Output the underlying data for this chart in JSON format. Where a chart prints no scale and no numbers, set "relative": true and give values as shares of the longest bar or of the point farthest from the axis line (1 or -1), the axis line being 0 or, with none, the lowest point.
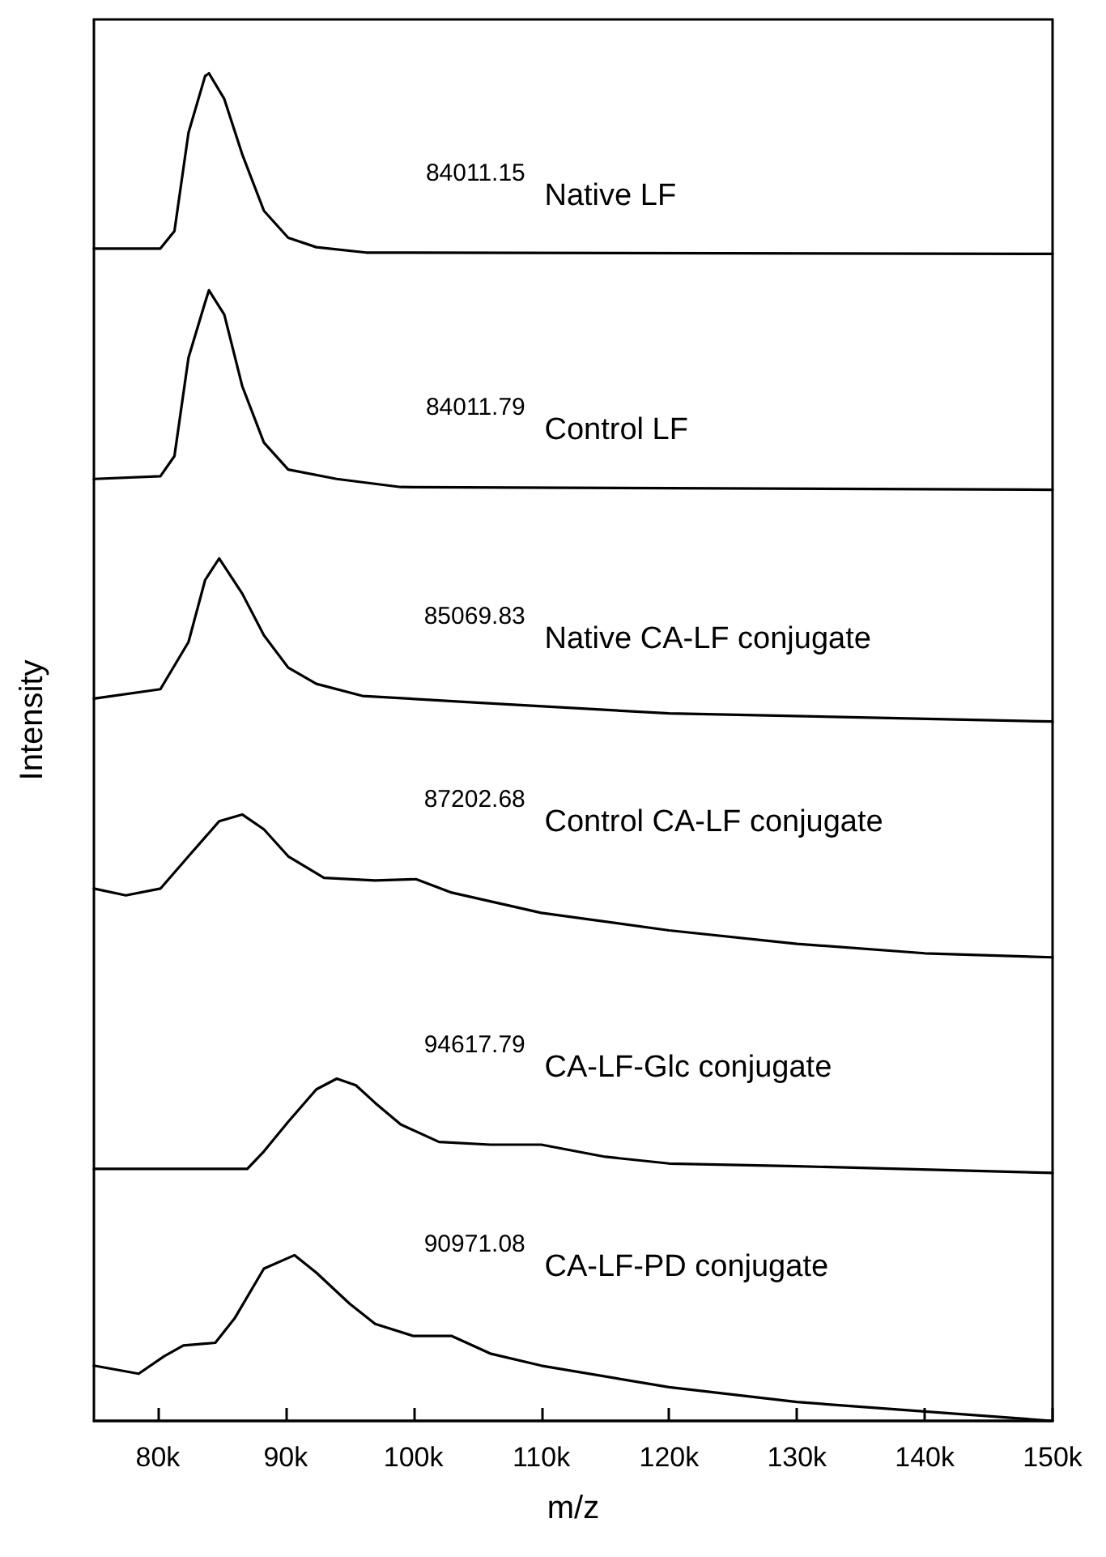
{
  "chart_data": {
    "type": "line",
    "relative": true,
    "xlabel": "m/z",
    "ylabel": "Intensity",
    "xlim": [
      75000,
      150000
    ],
    "xticks": [
      {
        "value": 80000,
        "label": "80k"
      },
      {
        "value": 90000,
        "label": "90k"
      },
      {
        "value": 100000,
        "label": "100k"
      },
      {
        "value": 110000,
        "label": "110k"
      },
      {
        "value": 120000,
        "label": "120k"
      },
      {
        "value": 130000,
        "label": "130k"
      },
      {
        "value": 140000,
        "label": "140k"
      },
      {
        "value": 150000,
        "label": "150k"
      }
    ],
    "tick_labels": "x",
    "grid": false,
    "legend": false,
    "marker": "none",
    "line_style": "solid",
    "annotations": [
      "84011.15",
      "84011.79",
      "85069.83",
      "87202.68",
      "94617.79",
      "90971.08"
    ],
    "series": [
      {
        "name": "Native LF",
        "color": "#000000",
        "x": [
          75000,
          80200,
          81300,
          82400,
          83700,
          84000,
          85200,
          86600,
          88300,
          90200,
          92400,
          96300,
          150000
        ],
        "values": [
          0.87,
          0.87,
          0.883,
          0.956,
          0.998,
          1.0,
          0.981,
          0.94,
          0.898,
          0.878,
          0.871,
          0.867,
          0.866
        ]
      },
      {
        "name": "Control LF",
        "color": "#000000",
        "x": [
          75000,
          80200,
          81300,
          82400,
          83700,
          84000,
          85200,
          86600,
          88300,
          90200,
          94000,
          99000,
          150000
        ],
        "values": [
          0.699,
          0.701,
          0.716,
          0.789,
          0.83,
          0.839,
          0.821,
          0.768,
          0.726,
          0.706,
          0.699,
          0.693,
          0.691
        ]
      },
      {
        "name": "Native CA-LF conjugate",
        "color": "#000000",
        "x": [
          75000,
          80200,
          82400,
          83700,
          84800,
          86600,
          88300,
          90200,
          92400,
          96000,
          105000,
          120000,
          135000,
          150000
        ],
        "values": [
          0.536,
          0.543,
          0.578,
          0.624,
          0.64,
          0.614,
          0.583,
          0.559,
          0.547,
          0.538,
          0.533,
          0.525,
          0.522,
          0.519
        ]
      },
      {
        "name": "Control CA-LF conjugate",
        "color": "#000000",
        "x": [
          75000,
          77500,
          80200,
          82400,
          84800,
          86600,
          88300,
          90200,
          93000,
          97000,
          100200,
          103000,
          110000,
          120000,
          130000,
          140000,
          150000
        ],
        "values": [
          0.395,
          0.39,
          0.395,
          0.419,
          0.445,
          0.45,
          0.439,
          0.419,
          0.403,
          0.401,
          0.402,
          0.392,
          0.377,
          0.364,
          0.354,
          0.347,
          0.344
        ]
      },
      {
        "name": "CA-LF-Glc conjugate",
        "color": "#000000",
        "x": [
          75000,
          87000,
          88300,
          90200,
          92400,
          94000,
          95500,
          97000,
          99000,
          102000,
          106000,
          110000,
          115000,
          120000,
          130000,
          150000
        ],
        "values": [
          0.187,
          0.187,
          0.2,
          0.222,
          0.246,
          0.254,
          0.249,
          0.236,
          0.22,
          0.207,
          0.205,
          0.205,
          0.196,
          0.191,
          0.189,
          0.184
        ]
      },
      {
        "name": "CA-LF-PD conjugate",
        "color": "#000000",
        "x": [
          75000,
          78500,
          80500,
          82000,
          84500,
          86000,
          88300,
          90700,
          92400,
          95000,
          97000,
          100000,
          103000,
          106000,
          110000,
          120000,
          130000,
          140000,
          150000
        ],
        "values": [
          0.041,
          0.035,
          0.048,
          0.056,
          0.058,
          0.076,
          0.113,
          0.123,
          0.11,
          0.087,
          0.072,
          0.063,
          0.063,
          0.05,
          0.041,
          0.025,
          0.014,
          0.007,
          0
        ]
      }
    ]
  }
}
